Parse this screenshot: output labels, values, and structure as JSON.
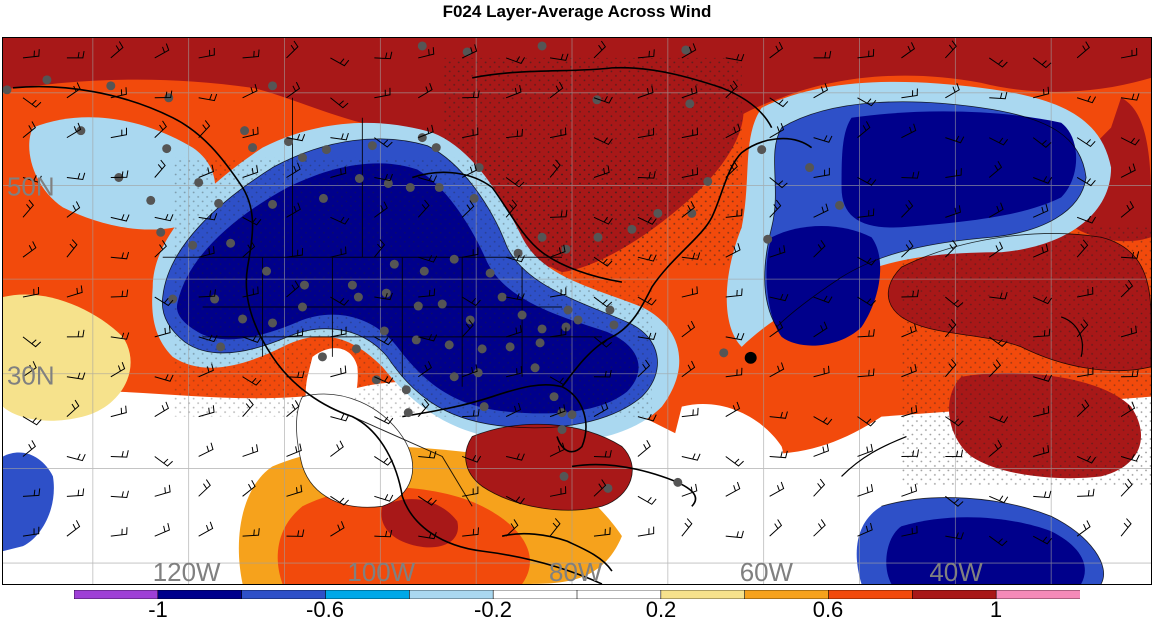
{
  "title": "F024 Layer-Average Across Wind",
  "map": {
    "lat_labels": [
      "50N",
      "30N"
    ],
    "lon_labels": [
      "120W",
      "100W",
      "80W",
      "60W",
      "40W"
    ],
    "label_color": "#808080"
  },
  "colorbar": {
    "colors": [
      "#9e3fd6",
      "#00008b",
      "#2e50c8",
      "#00a8e8",
      "#aad8f0",
      "#ffffff",
      "#ffffff",
      "#f6e28c",
      "#f6a21c",
      "#f24a0c",
      "#a81818",
      "#f48ab8"
    ],
    "labels": [
      "-1",
      "-0.6",
      "-0.2",
      "0.2",
      "0.6",
      "1"
    ]
  }
}
